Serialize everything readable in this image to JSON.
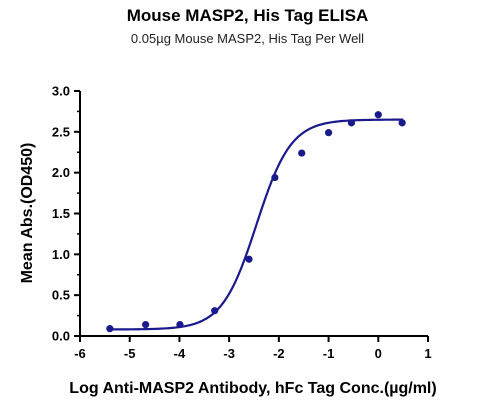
{
  "chart_data": {
    "type": "scatter",
    "title": "Mouse MASP2, His Tag ELISA",
    "subtitle": "0.05µg Mouse MASP2, His Tag Per Well",
    "xlabel": "Log Anti-MASP2 Antibody, hFc Tag Conc.(µg/ml)",
    "ylabel": "Mean Abs.(OD450)",
    "xlim": [
      -6,
      1
    ],
    "ylim": [
      0,
      3.0
    ],
    "x_ticks": [
      "-6",
      "-5",
      "-4",
      "-3",
      "-2",
      "-1",
      "0",
      "1"
    ],
    "y_ticks": [
      "0.0",
      "0.5",
      "1.0",
      "1.5",
      "2.0",
      "2.5",
      "3.0"
    ],
    "grid": false,
    "colors": {
      "series": "#1a1a8c",
      "axis": "#000000"
    },
    "series": [
      {
        "x": [
          -5.4,
          -4.68,
          -3.99,
          -3.29,
          -2.6,
          -2.08,
          -1.54,
          -1.0,
          -0.54,
          0.0,
          0.48
        ],
        "y": [
          0.09,
          0.14,
          0.14,
          0.31,
          0.94,
          1.94,
          2.24,
          2.49,
          2.61,
          2.71,
          2.61
        ],
        "fit": {
          "bottom": 0.08,
          "top": 2.65,
          "logEC50": -2.45,
          "hill": 1.25
        }
      }
    ]
  }
}
